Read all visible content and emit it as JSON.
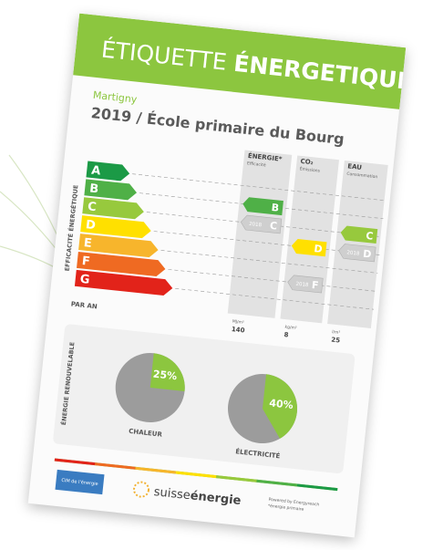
{
  "header": {
    "title_light": "ÉTIQUETTE",
    "title_bold": "ÉNERGETIQUE"
  },
  "location": "Martigny",
  "title": "2019 / École primaire du Bourg",
  "scale_label": "EFFICACITÉ ÉNERGÉTIQUE",
  "classes": [
    "A",
    "B",
    "C",
    "D",
    "E",
    "F",
    "G"
  ],
  "class_colors": [
    "#1b9a46",
    "#4fb047",
    "#97c93d",
    "#ffe000",
    "#f7b52c",
    "#ef6a22",
    "#e2231a"
  ],
  "per_year_label": "PAR AN",
  "columns": [
    {
      "title": "ÉNERGIE*",
      "subtitle": "Efficacité",
      "unit": "MJ/m²",
      "value": "140",
      "class": "B",
      "previous_year": "2018",
      "previous_class": "C"
    },
    {
      "title": "CO₂",
      "subtitle": "Émissions",
      "unit": "kg/m²",
      "value": "8",
      "class": "D",
      "previous_year": "2018",
      "previous_class": "F"
    },
    {
      "title": "EAU",
      "subtitle": "Consommation",
      "unit": "l/m²",
      "value": "25",
      "class": "C",
      "previous_year": "2018",
      "previous_class": "D"
    }
  ],
  "renewable": {
    "label": "ÉNERGIE RENOUVELABLE",
    "pies": [
      {
        "name": "CHALEUR",
        "value": 25,
        "value_label": "25%"
      },
      {
        "name": "ÉLECTRICITÉ",
        "value": 40,
        "value_label": "40%"
      }
    ]
  },
  "footer": {
    "left_logo": "CIM de l'énergie",
    "brand_light": "suisse",
    "brand_bold": "énergie",
    "powered": "Powered by Energyreach",
    "note": "*énergie primaire"
  }
}
